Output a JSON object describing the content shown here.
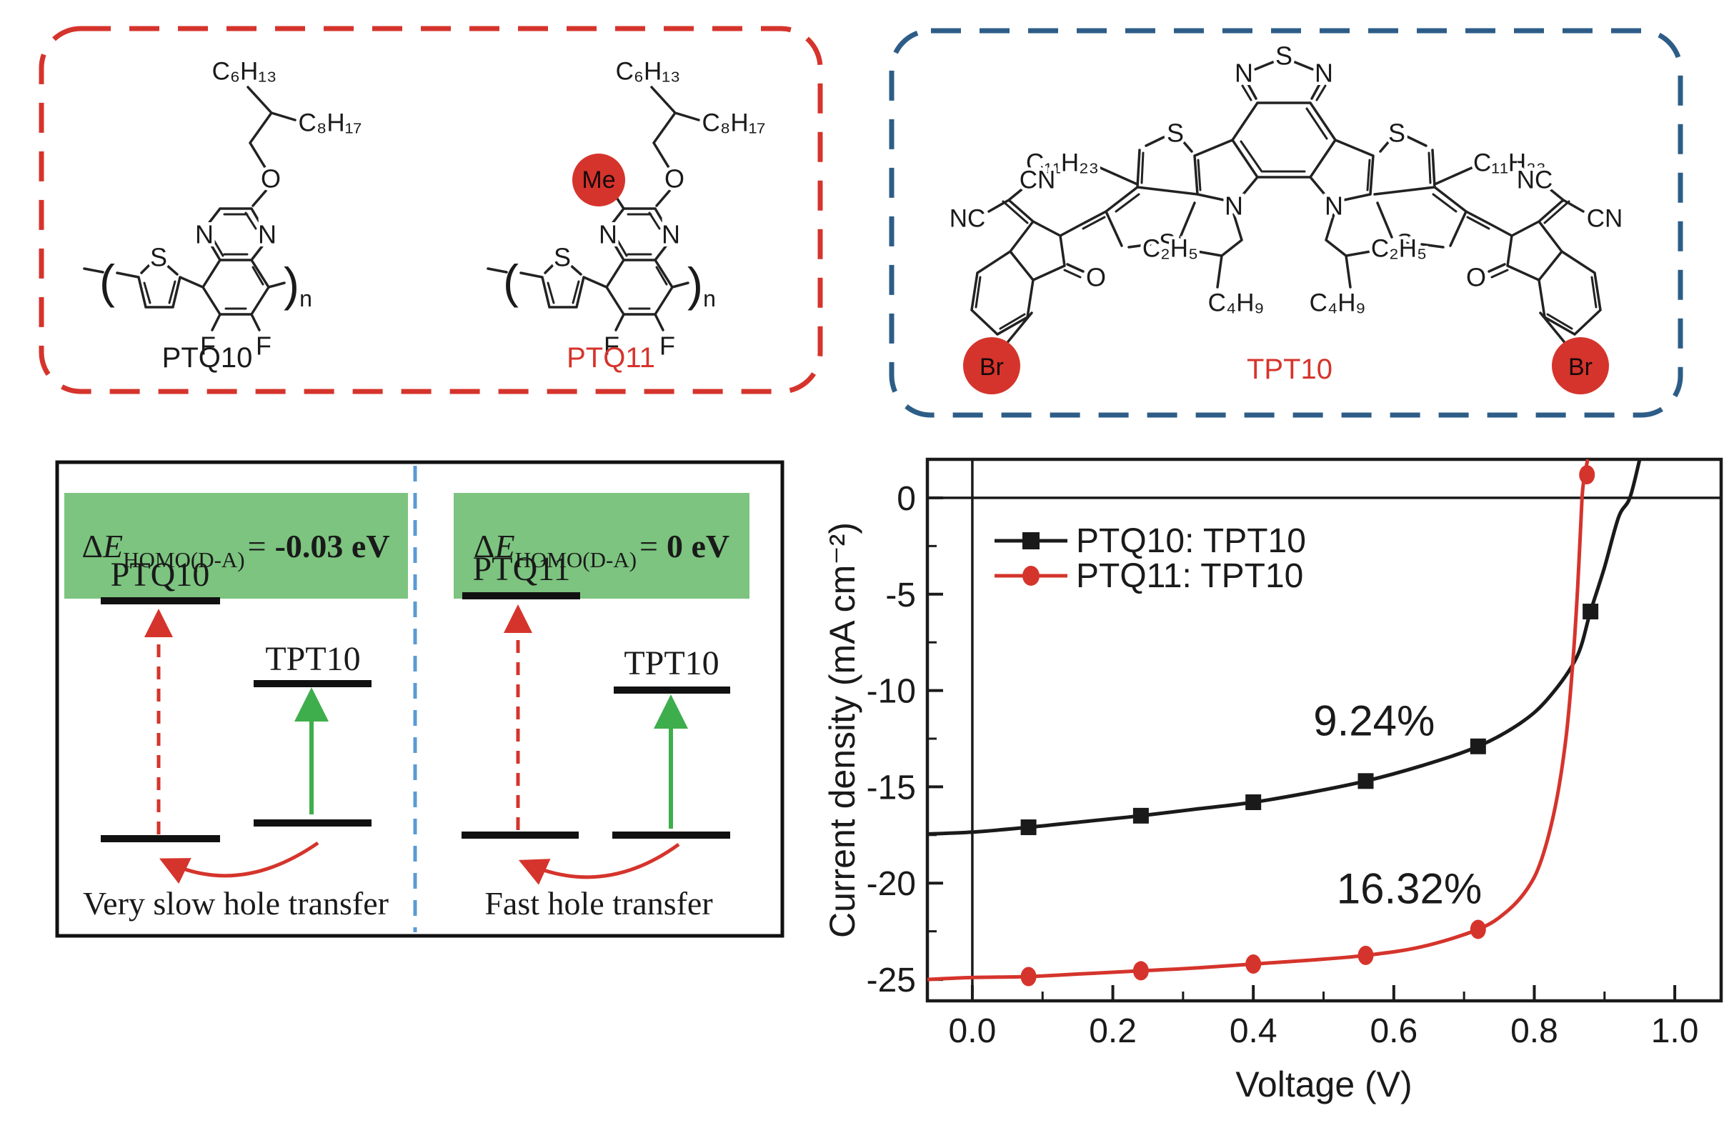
{
  "colors": {
    "accent_red": "#d5342c",
    "box_blue": "#2d5d87",
    "divider_blue": "#5b9bd5",
    "green_fill": "#7cc47f",
    "arrow_green": "#3eae4c",
    "ink": "#1a1a1a"
  },
  "molecules": {
    "ptq10": {
      "name": "PTQ10",
      "c6h13": "C₆H₁₃",
      "c8h17": "C₈H₁₇",
      "o": "O",
      "n_left": "N",
      "n_right": "N",
      "s": "S",
      "f_left": "F",
      "f_right": "F",
      "bracket_left": "(",
      "bracket_right": ")",
      "repeat": "n"
    },
    "ptq11": {
      "name": "PTQ11",
      "me": "Me",
      "c6h13": "C₆H₁₃",
      "c8h17": "C₈H₁₇",
      "o": "O",
      "n_left": "N",
      "n_right": "N",
      "s": "S",
      "f_left": "F",
      "f_right": "F",
      "bracket_left": "(",
      "bracket_right": ")",
      "repeat": "n"
    },
    "tpt10": {
      "name": "TPT10",
      "s_top": "S",
      "n_top_left": "N",
      "n_top_right": "N",
      "s_upper_left": "S",
      "s_upper_right": "S",
      "s_lower_left": "S",
      "s_lower_right": "S",
      "n_pyrrole_left": "N",
      "n_pyrrole_right": "N",
      "c11h23_left": "C₁₁H₂₃",
      "c11h23_right": "C₁₁H₂₃",
      "c2h5_left": "C₂H₅",
      "c2h5_right": "C₂H₅",
      "c4h9_left": "C₄H₉",
      "c4h9_right": "C₄H₉",
      "cn_left": "CN",
      "nc_left": "NC",
      "nc_right": "NC",
      "cn_right": "CN",
      "o_left": "O",
      "o_right": "O",
      "br_left": "Br",
      "br_right": "Br"
    }
  },
  "energy_diagram": {
    "left": {
      "delta": "Δ",
      "e": "E",
      "subscript": "HOMO(D-A)",
      "equals": "=",
      "value": "-0.03 eV",
      "donor": "PTQ10",
      "acceptor": "TPT10",
      "caption": "Very slow hole transfer"
    },
    "right": {
      "delta": "Δ",
      "e": "E",
      "subscript": "HOMO(D-A)",
      "equals": "=",
      "value": "0 eV",
      "donor": "PTQ11",
      "acceptor": "TPT10",
      "caption": "Fast hole transfer"
    }
  },
  "chart_data": {
    "type": "line",
    "title": "",
    "xlabel": "Voltage (V)",
    "ylabel": "Current density (mA cm⁻²)",
    "xlim": [
      -0.064,
      1.066
    ],
    "ylim": [
      -26.11,
      2.0
    ],
    "x_ticks": [
      0.0,
      0.2,
      0.4,
      0.6,
      0.8,
      1.0
    ],
    "x_tick_labels": [
      "0.0",
      "0.2",
      "0.4",
      "0.6",
      "0.8",
      "1.0"
    ],
    "x_minor_ticks": [
      0.1,
      0.3,
      0.5,
      0.7,
      0.9
    ],
    "y_ticks": [
      0,
      -5,
      -10,
      -15,
      -20,
      -25
    ],
    "y_tick_labels": [
      "0",
      "-5",
      "-10",
      "-15",
      "-20",
      "-25"
    ],
    "y_minor_ticks": [
      -2.5,
      -7.5,
      -12.5,
      -17.5,
      -22.5
    ],
    "grid": false,
    "legend_position": "upper-left-inside",
    "legend": [
      {
        "label": "PTQ10: TPT10",
        "color": "#1a1a1a",
        "marker": "square"
      },
      {
        "label": "PTQ11: TPT10",
        "color": "#d5342c",
        "marker": "circle"
      }
    ],
    "annotations": [
      {
        "text": "9.24%",
        "color": "#1a1a1a",
        "x": 0.572,
        "y": -11.6
      },
      {
        "text": "16.32%",
        "color": "#d5342c",
        "x": 0.622,
        "y": -20.3
      }
    ],
    "series": [
      {
        "name": "PTQ10: TPT10",
        "color": "#1a1a1a",
        "marker": "square",
        "points": [
          [
            -0.064,
            -17.45
          ],
          [
            0.0,
            -17.35
          ],
          [
            0.08,
            -17.1
          ],
          [
            0.16,
            -16.8
          ],
          [
            0.24,
            -16.5
          ],
          [
            0.32,
            -16.15
          ],
          [
            0.4,
            -15.8
          ],
          [
            0.48,
            -15.3
          ],
          [
            0.56,
            -14.7
          ],
          [
            0.64,
            -13.9
          ],
          [
            0.72,
            -12.9
          ],
          [
            0.78,
            -11.7
          ],
          [
            0.82,
            -10.4
          ],
          [
            0.86,
            -8.3
          ],
          [
            0.88,
            -5.9
          ],
          [
            0.9,
            -3.6
          ],
          [
            0.92,
            -1.0
          ],
          [
            0.936,
            0.0
          ],
          [
            0.95,
            2.0
          ]
        ],
        "marker_points": [
          [
            0.08,
            -17.1
          ],
          [
            0.24,
            -16.5
          ],
          [
            0.4,
            -15.8
          ],
          [
            0.56,
            -14.7
          ],
          [
            0.72,
            -12.9
          ],
          [
            0.88,
            -5.9
          ]
        ]
      },
      {
        "name": "PTQ11: TPT10",
        "color": "#d5342c",
        "marker": "circle",
        "points": [
          [
            -0.064,
            -25.0
          ],
          [
            0.0,
            -24.9
          ],
          [
            0.08,
            -24.85
          ],
          [
            0.16,
            -24.7
          ],
          [
            0.24,
            -24.55
          ],
          [
            0.32,
            -24.4
          ],
          [
            0.4,
            -24.2
          ],
          [
            0.48,
            -24.0
          ],
          [
            0.56,
            -23.75
          ],
          [
            0.64,
            -23.3
          ],
          [
            0.72,
            -22.4
          ],
          [
            0.76,
            -21.5
          ],
          [
            0.79,
            -20.3
          ],
          [
            0.81,
            -18.8
          ],
          [
            0.83,
            -16.0
          ],
          [
            0.845,
            -12.5
          ],
          [
            0.855,
            -8.5
          ],
          [
            0.862,
            -4.5
          ],
          [
            0.868,
            0.0
          ],
          [
            0.872,
            1.2
          ],
          [
            0.876,
            2.0
          ]
        ],
        "marker_points": [
          [
            0.08,
            -24.85
          ],
          [
            0.24,
            -24.55
          ],
          [
            0.4,
            -24.2
          ],
          [
            0.56,
            -23.75
          ],
          [
            0.72,
            -22.4
          ],
          [
            0.875,
            1.2
          ]
        ]
      }
    ]
  }
}
